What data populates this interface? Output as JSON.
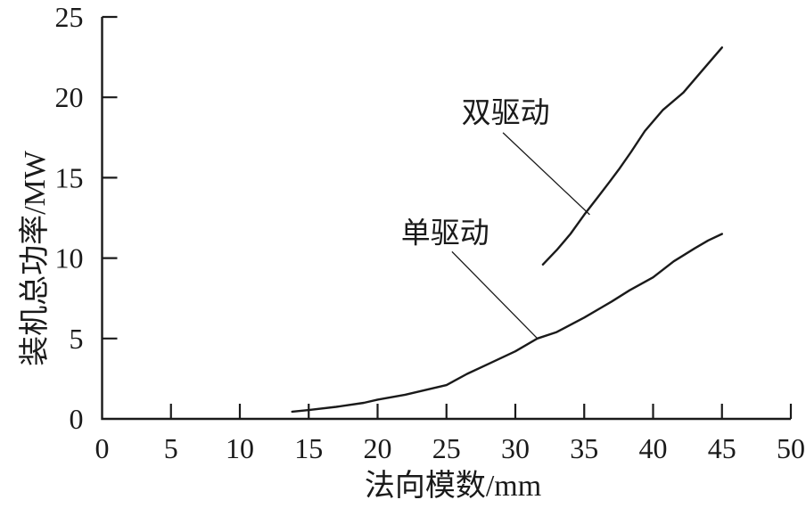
{
  "page": {
    "background": "#ffffff",
    "ink_color": "#1a1a1a"
  },
  "chart_data": {
    "type": "line",
    "title": "",
    "xlabel": "法向模数/mm",
    "ylabel": "装机总功率/MW",
    "xlim": [
      0,
      50
    ],
    "ylim": [
      0,
      25
    ],
    "x_ticks": [
      0,
      5,
      10,
      15,
      20,
      25,
      30,
      35,
      40,
      45,
      50
    ],
    "y_ticks": [
      0,
      5,
      10,
      15,
      20,
      25
    ],
    "grid": false,
    "legend_position": "inline-annotations",
    "line_color": "#1a1a1a",
    "series": [
      {
        "name": "双驱动",
        "key": "dual-drive",
        "points": [
          [
            32,
            9.6
          ],
          [
            33,
            10.5
          ],
          [
            34,
            11.5
          ],
          [
            35,
            12.7
          ],
          [
            36,
            13.8
          ],
          [
            36.8,
            14.7
          ],
          [
            37.5,
            15.5
          ],
          [
            38.4,
            16.6
          ],
          [
            39.4,
            17.9
          ],
          [
            40.7,
            19.2
          ],
          [
            42.2,
            20.3
          ],
          [
            43.5,
            21.6
          ],
          [
            45,
            23.1
          ]
        ]
      },
      {
        "name": "单驱动",
        "key": "single-drive",
        "points": [
          [
            13.8,
            0.45
          ],
          [
            15,
            0.55
          ],
          [
            17,
            0.75
          ],
          [
            19,
            1.0
          ],
          [
            20,
            1.2
          ],
          [
            22,
            1.5
          ],
          [
            24,
            1.9
          ],
          [
            25,
            2.1
          ],
          [
            26.5,
            2.8
          ],
          [
            28,
            3.4
          ],
          [
            30,
            4.2
          ],
          [
            31.6,
            5.0
          ],
          [
            33,
            5.4
          ],
          [
            35,
            6.3
          ],
          [
            36.2,
            6.9
          ],
          [
            37,
            7.3
          ],
          [
            38.3,
            8.0
          ],
          [
            40,
            8.8
          ],
          [
            41.5,
            9.8
          ],
          [
            43,
            10.6
          ],
          [
            44,
            11.1
          ],
          [
            45,
            11.5
          ]
        ]
      }
    ],
    "annotations": [
      {
        "text": "双驱动",
        "key": "dual-drive",
        "label_xy": [
          29.3,
          19.1
        ],
        "leader_from": [
          29.1,
          17.8
        ],
        "leader_to": [
          35.4,
          12.7
        ]
      },
      {
        "text": "单驱动",
        "key": "single-drive",
        "label_xy": [
          24.9,
          11.6
        ],
        "leader_from": [
          25.4,
          10.4
        ],
        "leader_to": [
          31.6,
          5.0
        ]
      }
    ]
  }
}
